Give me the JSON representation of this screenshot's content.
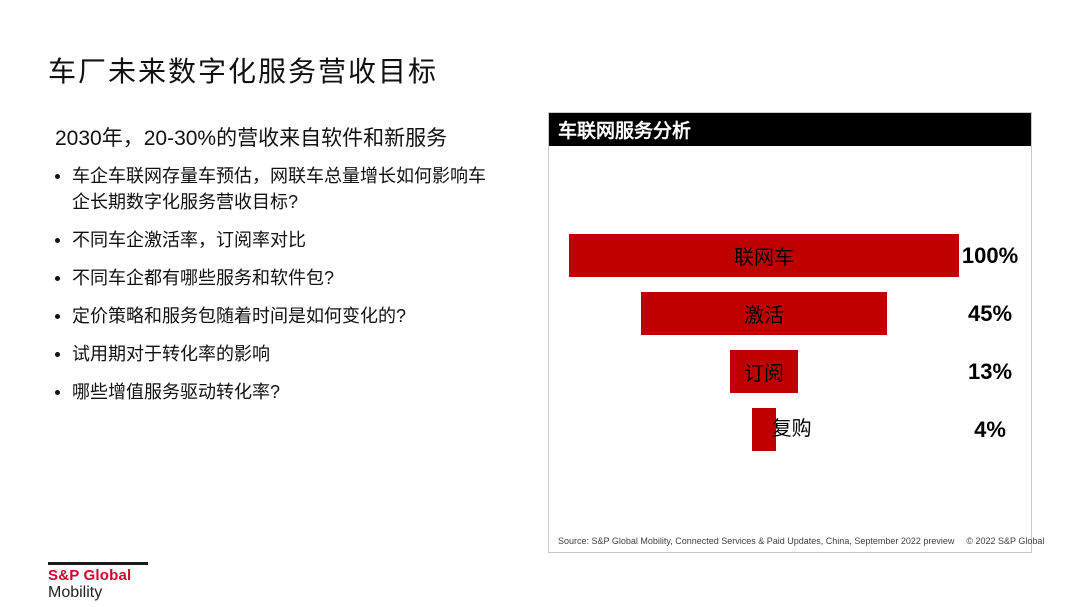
{
  "slide": {
    "title": "车厂未来数字化服务营收目标",
    "subtitle": "2030年，20-30%的营收来自软件和新服务",
    "bullets": [
      "车企车联网存量车预估，网联车总量增长如何影响车企长期数字化服务营收目标?",
      "不同车企激活率，订阅率对比",
      "不同车企都有哪些服务和软件包?",
      "定价策略和服务包随着时间是如何变化的?",
      "试用期对于转化率的影响",
      "哪些增值服务驱动转化率?"
    ]
  },
  "chart": {
    "header": "车联网服务分析",
    "source": "Source: S&P Global Mobility, Connected Services & Paid Updates, China, September 2022 preview",
    "copyright": "© 2022 S&P Global"
  },
  "chart_data": {
    "type": "bar",
    "subtype": "funnel",
    "title": "车联网服务分析",
    "categories": [
      "联网车",
      "激活",
      "订阅",
      "复购"
    ],
    "values": [
      100,
      45,
      13,
      4
    ],
    "value_labels": [
      "100%",
      "45%",
      "13%",
      "4%"
    ],
    "orientation": "horizontal-centered-funnel",
    "bar_color": "#C00000",
    "label_color": "#000000",
    "bar_width_pct_of_max": [
      100,
      63,
      17.5,
      6
    ],
    "label_inside": [
      true,
      true,
      true,
      false
    ],
    "xlabel": "",
    "ylabel": "",
    "grid": false,
    "legend": false
  },
  "footer": {
    "brand_line1": "S&P Global",
    "brand_line2": "Mobility"
  },
  "colors": {
    "funnel_red": "#C00000",
    "brand_red": "#D6002A",
    "chart_header_bg": "#000000",
    "chart_border": "#C9C9C9",
    "text": "#1A1A1A"
  }
}
